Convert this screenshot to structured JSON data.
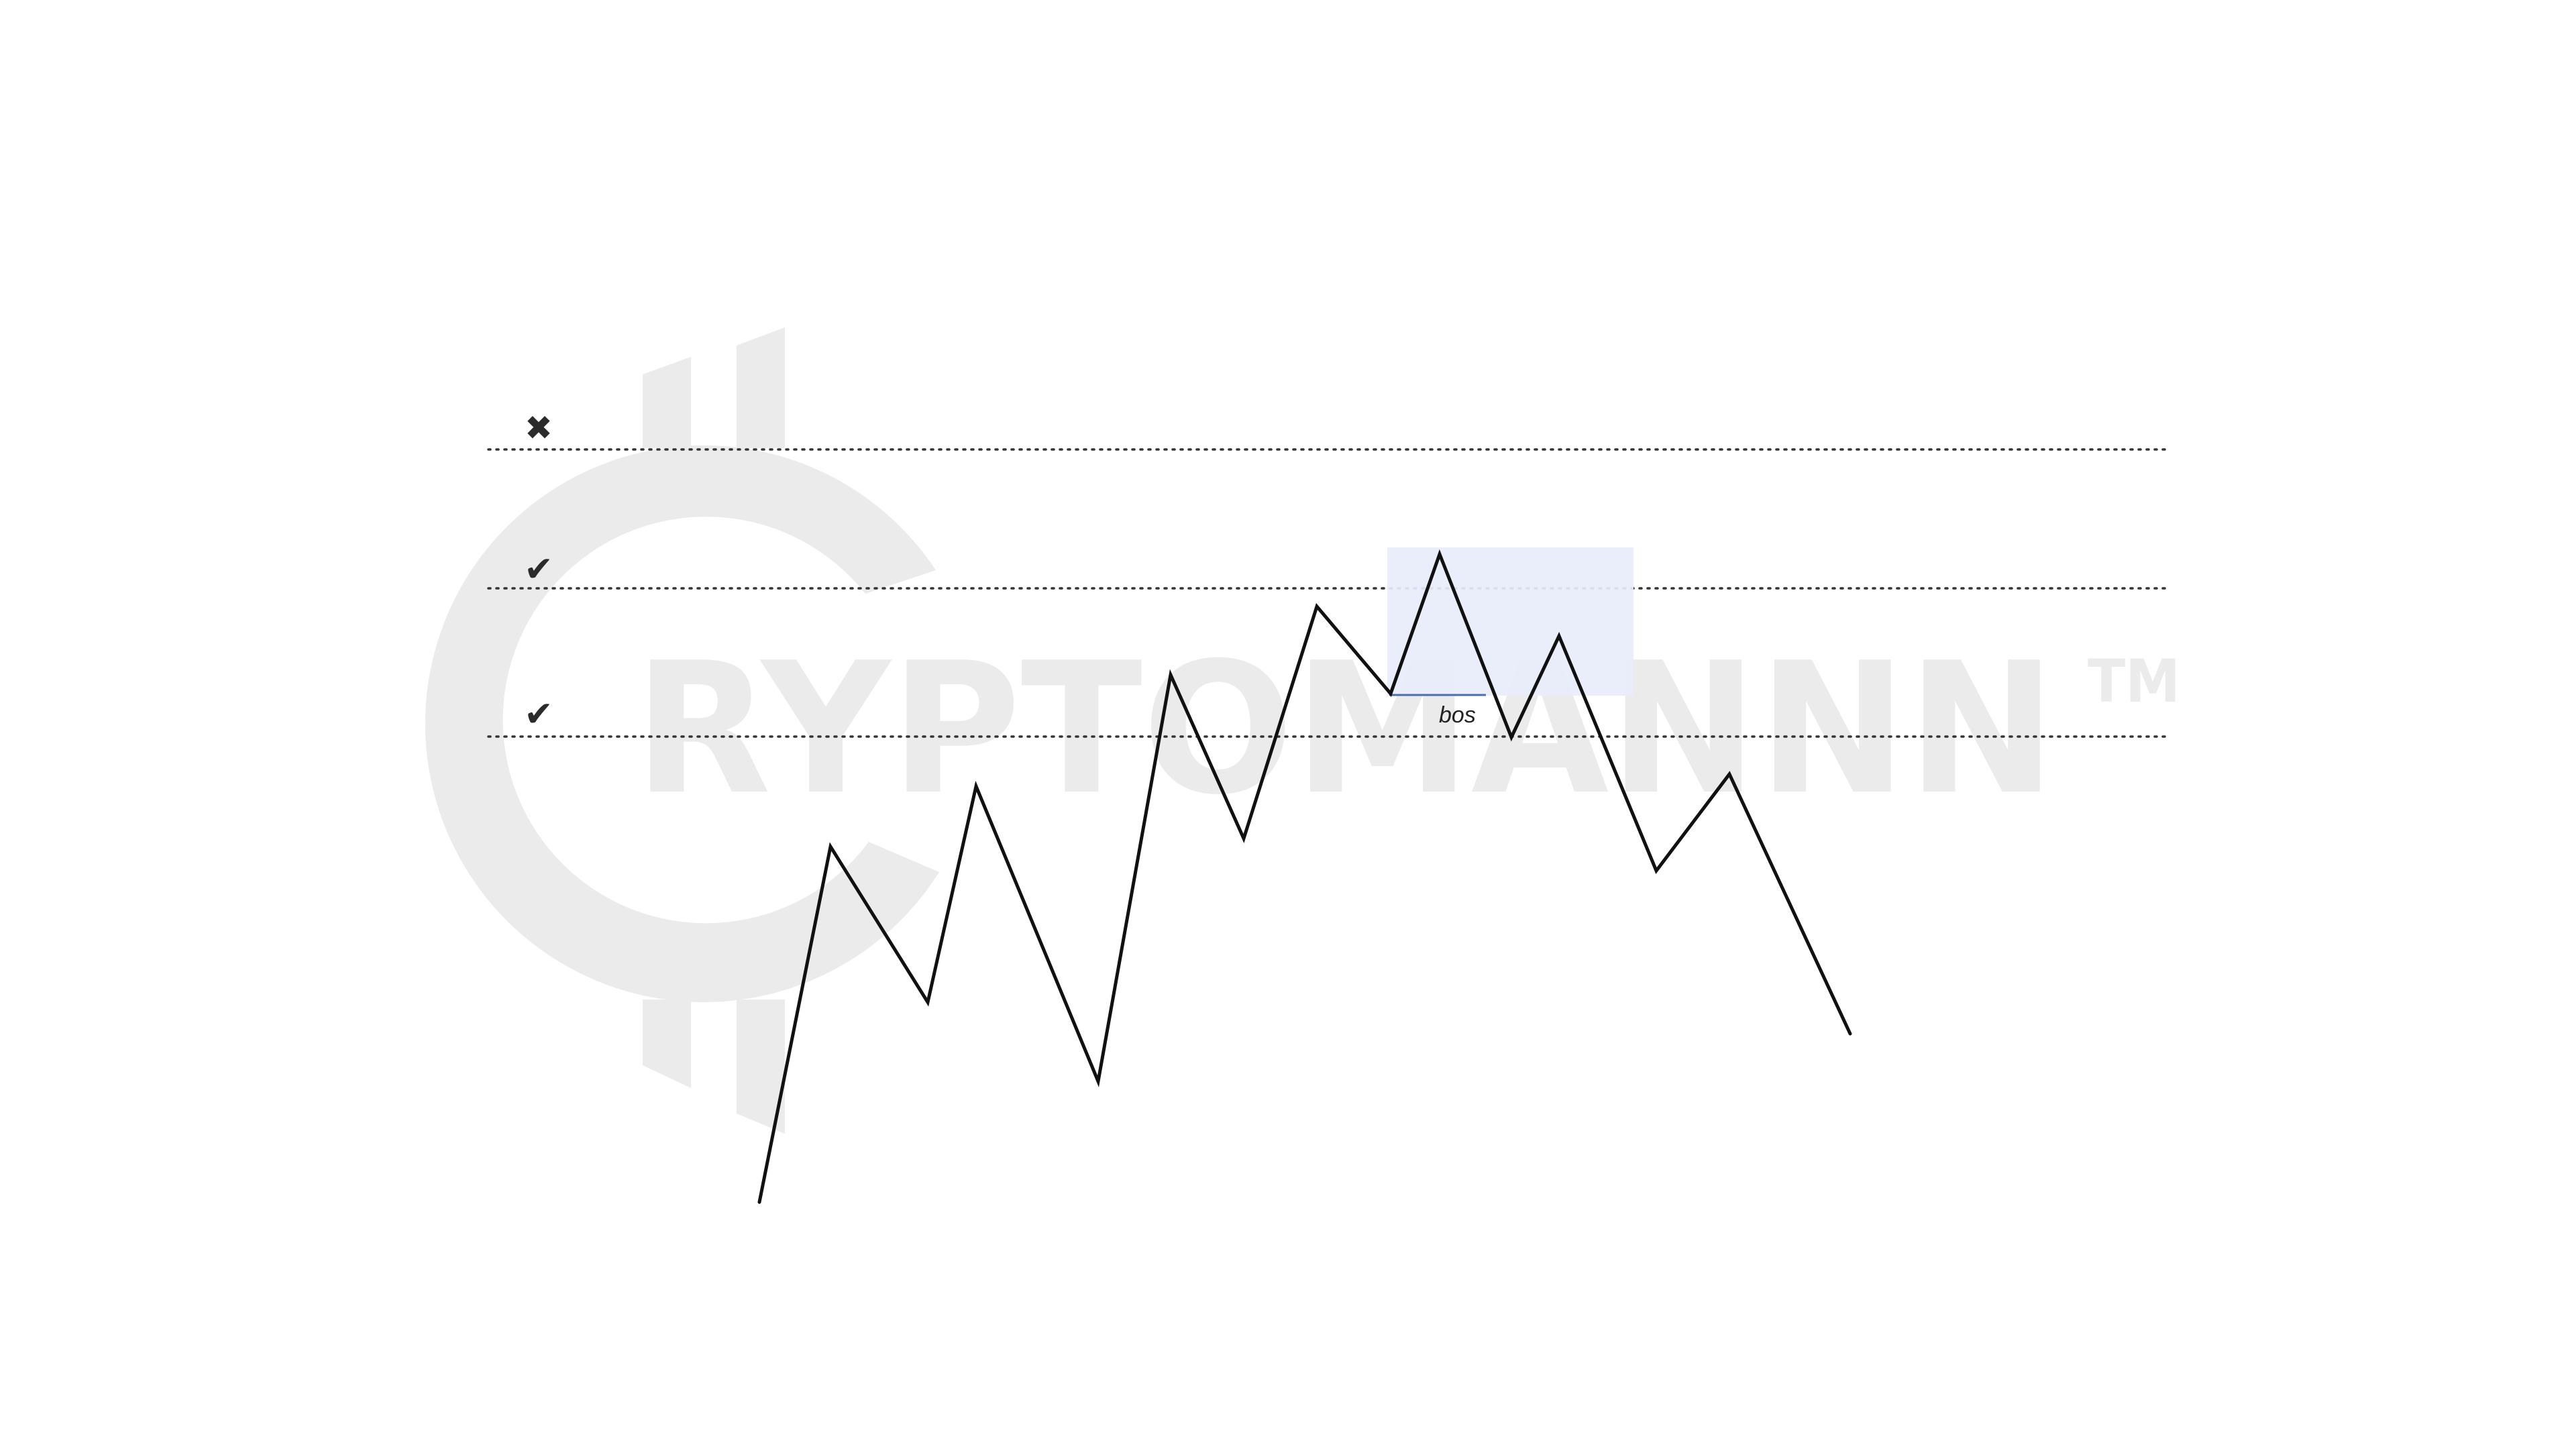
{
  "watermark": {
    "text": "RYPTOMANNN",
    "trademark": "TM",
    "color": "#ebebeb"
  },
  "markers": [
    {
      "symbol": "✖",
      "meaning": "invalid level"
    },
    {
      "symbol": "✔",
      "meaning": "valid level"
    },
    {
      "symbol": "✔",
      "meaning": "valid level"
    }
  ],
  "annotation": {
    "bos_label": "bos",
    "zone_color": "#e8edfb",
    "bos_line_color": "#4a6fb0"
  },
  "colors": {
    "price_line": "#111111",
    "level_line": "#333333",
    "marker": "#2b2b2b"
  }
}
